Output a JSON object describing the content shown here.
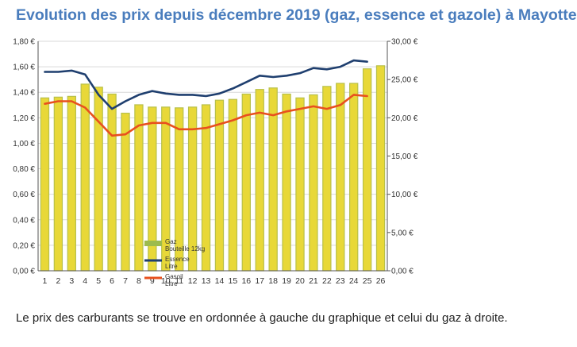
{
  "title": "Evolution des prix depuis décembre 2019 (gaz, essence et gazole) à Mayotte",
  "caption": "Le prix des carburants se trouve en ordonnée à gauche du graphique et celui du gaz à droite.",
  "colors": {
    "title": "#4a7dbd",
    "bar_fill": "#e8d838",
    "bar_edge": "#b8c04a",
    "essence": "#1f3f6f",
    "gasoil": "#e8501e",
    "legend_gaz": "#9dbb4e"
  },
  "chart_data": {
    "type": "bar",
    "categories": [
      "1",
      "2",
      "3",
      "4",
      "5",
      "6",
      "7",
      "8",
      "9",
      "10",
      "11",
      "12",
      "13",
      "14",
      "15",
      "16",
      "17",
      "18",
      "19",
      "20",
      "21",
      "22",
      "23",
      "24",
      "25",
      "26"
    ],
    "y_left": {
      "min": 0,
      "max": 1.8,
      "step": 0.2,
      "tick_labels": [
        "0,00 €",
        "0,20 €",
        "0,40 €",
        "0,60 €",
        "0,80 €",
        "1,00 €",
        "1,20 €",
        "1,40 €",
        "1,60 €",
        "1,80 €"
      ]
    },
    "y_right": {
      "min": 0,
      "max": 30,
      "step": 5,
      "tick_labels": [
        "0,00 €",
        "5,00 €",
        "10,00 €",
        "15,00 €",
        "20,00 €",
        "25,00 €",
        "30,00 €"
      ]
    },
    "grid": true,
    "legend_position": "bottom-left",
    "series": [
      {
        "name": "Gaz\nBouteille 12kg",
        "kind": "bar",
        "axis": "right",
        "values": [
          22.6,
          22.7,
          22.8,
          24.4,
          24.0,
          23.1,
          20.6,
          21.7,
          21.4,
          21.4,
          21.3,
          21.4,
          21.7,
          22.3,
          22.4,
          23.1,
          23.7,
          23.9,
          23.1,
          22.6,
          23.0,
          24.1,
          24.5,
          24.5,
          26.4,
          26.8
        ]
      },
      {
        "name": "Essence\nLitre",
        "kind": "line",
        "axis": "left",
        "values": [
          1.56,
          1.56,
          1.57,
          1.54,
          1.38,
          1.27,
          1.33,
          1.38,
          1.41,
          1.39,
          1.38,
          1.38,
          1.37,
          1.39,
          1.43,
          1.48,
          1.53,
          1.52,
          1.53,
          1.55,
          1.59,
          1.58,
          1.6,
          1.65,
          1.64,
          null
        ]
      },
      {
        "name": "Gasoil\nLitre",
        "kind": "line",
        "axis": "left",
        "values": [
          1.31,
          1.33,
          1.33,
          1.28,
          1.17,
          1.06,
          1.07,
          1.14,
          1.16,
          1.16,
          1.11,
          1.11,
          1.12,
          1.15,
          1.18,
          1.22,
          1.24,
          1.22,
          1.25,
          1.27,
          1.29,
          1.27,
          1.3,
          1.38,
          1.37,
          null
        ]
      }
    ]
  }
}
